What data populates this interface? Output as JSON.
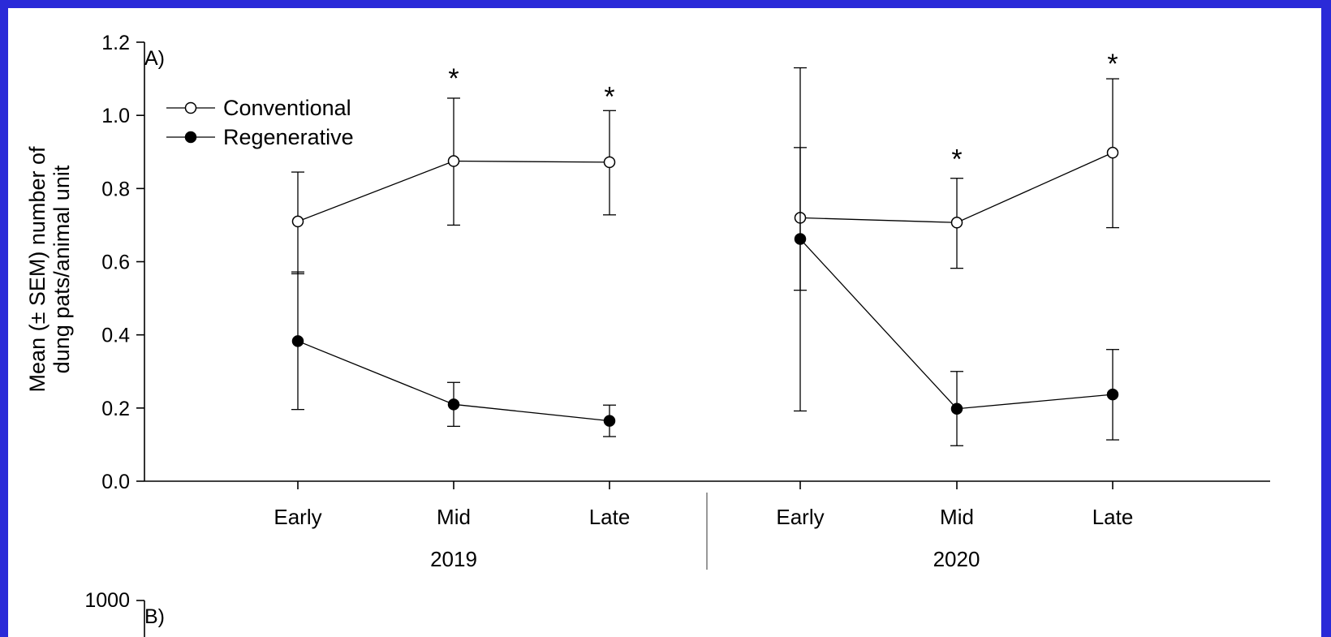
{
  "page": {
    "background_color": "#2a2ad8",
    "panel_color": "#ffffff"
  },
  "chart_data": [
    {
      "panel_label": "A)",
      "type": "line",
      "ylabel_lines": [
        "Mean (± SEM) number of",
        "dung pats/animal unit"
      ],
      "ylim": [
        0.0,
        1.2
      ],
      "yticks": [
        "0.0",
        "0.2",
        "0.4",
        "0.6",
        "0.8",
        "1.0",
        "1.2"
      ],
      "groups": [
        {
          "label": "2019",
          "categories": [
            "Early",
            "Mid",
            "Late"
          ]
        },
        {
          "label": "2020",
          "categories": [
            "Early",
            "Mid",
            "Late"
          ]
        }
      ],
      "legend_position": "top-left",
      "grid": false,
      "series": [
        {
          "name": "Conventional",
          "marker": "open-circle",
          "values": [
            0.71,
            0.875,
            0.872,
            0.72,
            0.707,
            0.898
          ],
          "error_upper": [
            0.845,
            1.047,
            1.013,
            1.13,
            0.828,
            1.1
          ],
          "error_lower": [
            0.567,
            0.7,
            0.728,
            0.192,
            0.582,
            0.693
          ]
        },
        {
          "name": "Regenerative",
          "marker": "filled-circle",
          "values": [
            0.383,
            0.21,
            0.165,
            0.662,
            0.198,
            0.237
          ],
          "error_upper": [
            0.572,
            0.27,
            0.208,
            0.912,
            0.3,
            0.36
          ],
          "error_lower": [
            0.196,
            0.15,
            0.122,
            0.522,
            0.097,
            0.113
          ]
        }
      ],
      "annotations": [
        {
          "text": "*",
          "category_index": 1,
          "y": 1.12
        },
        {
          "text": "*",
          "category_index": 2,
          "y": 1.07
        },
        {
          "text": "*",
          "category_index": 4,
          "y": 0.9
        },
        {
          "text": "*",
          "category_index": 5,
          "y": 1.16
        }
      ]
    },
    {
      "panel_label": "B)",
      "type": "line",
      "yticks_visible": [
        "1000"
      ]
    }
  ]
}
